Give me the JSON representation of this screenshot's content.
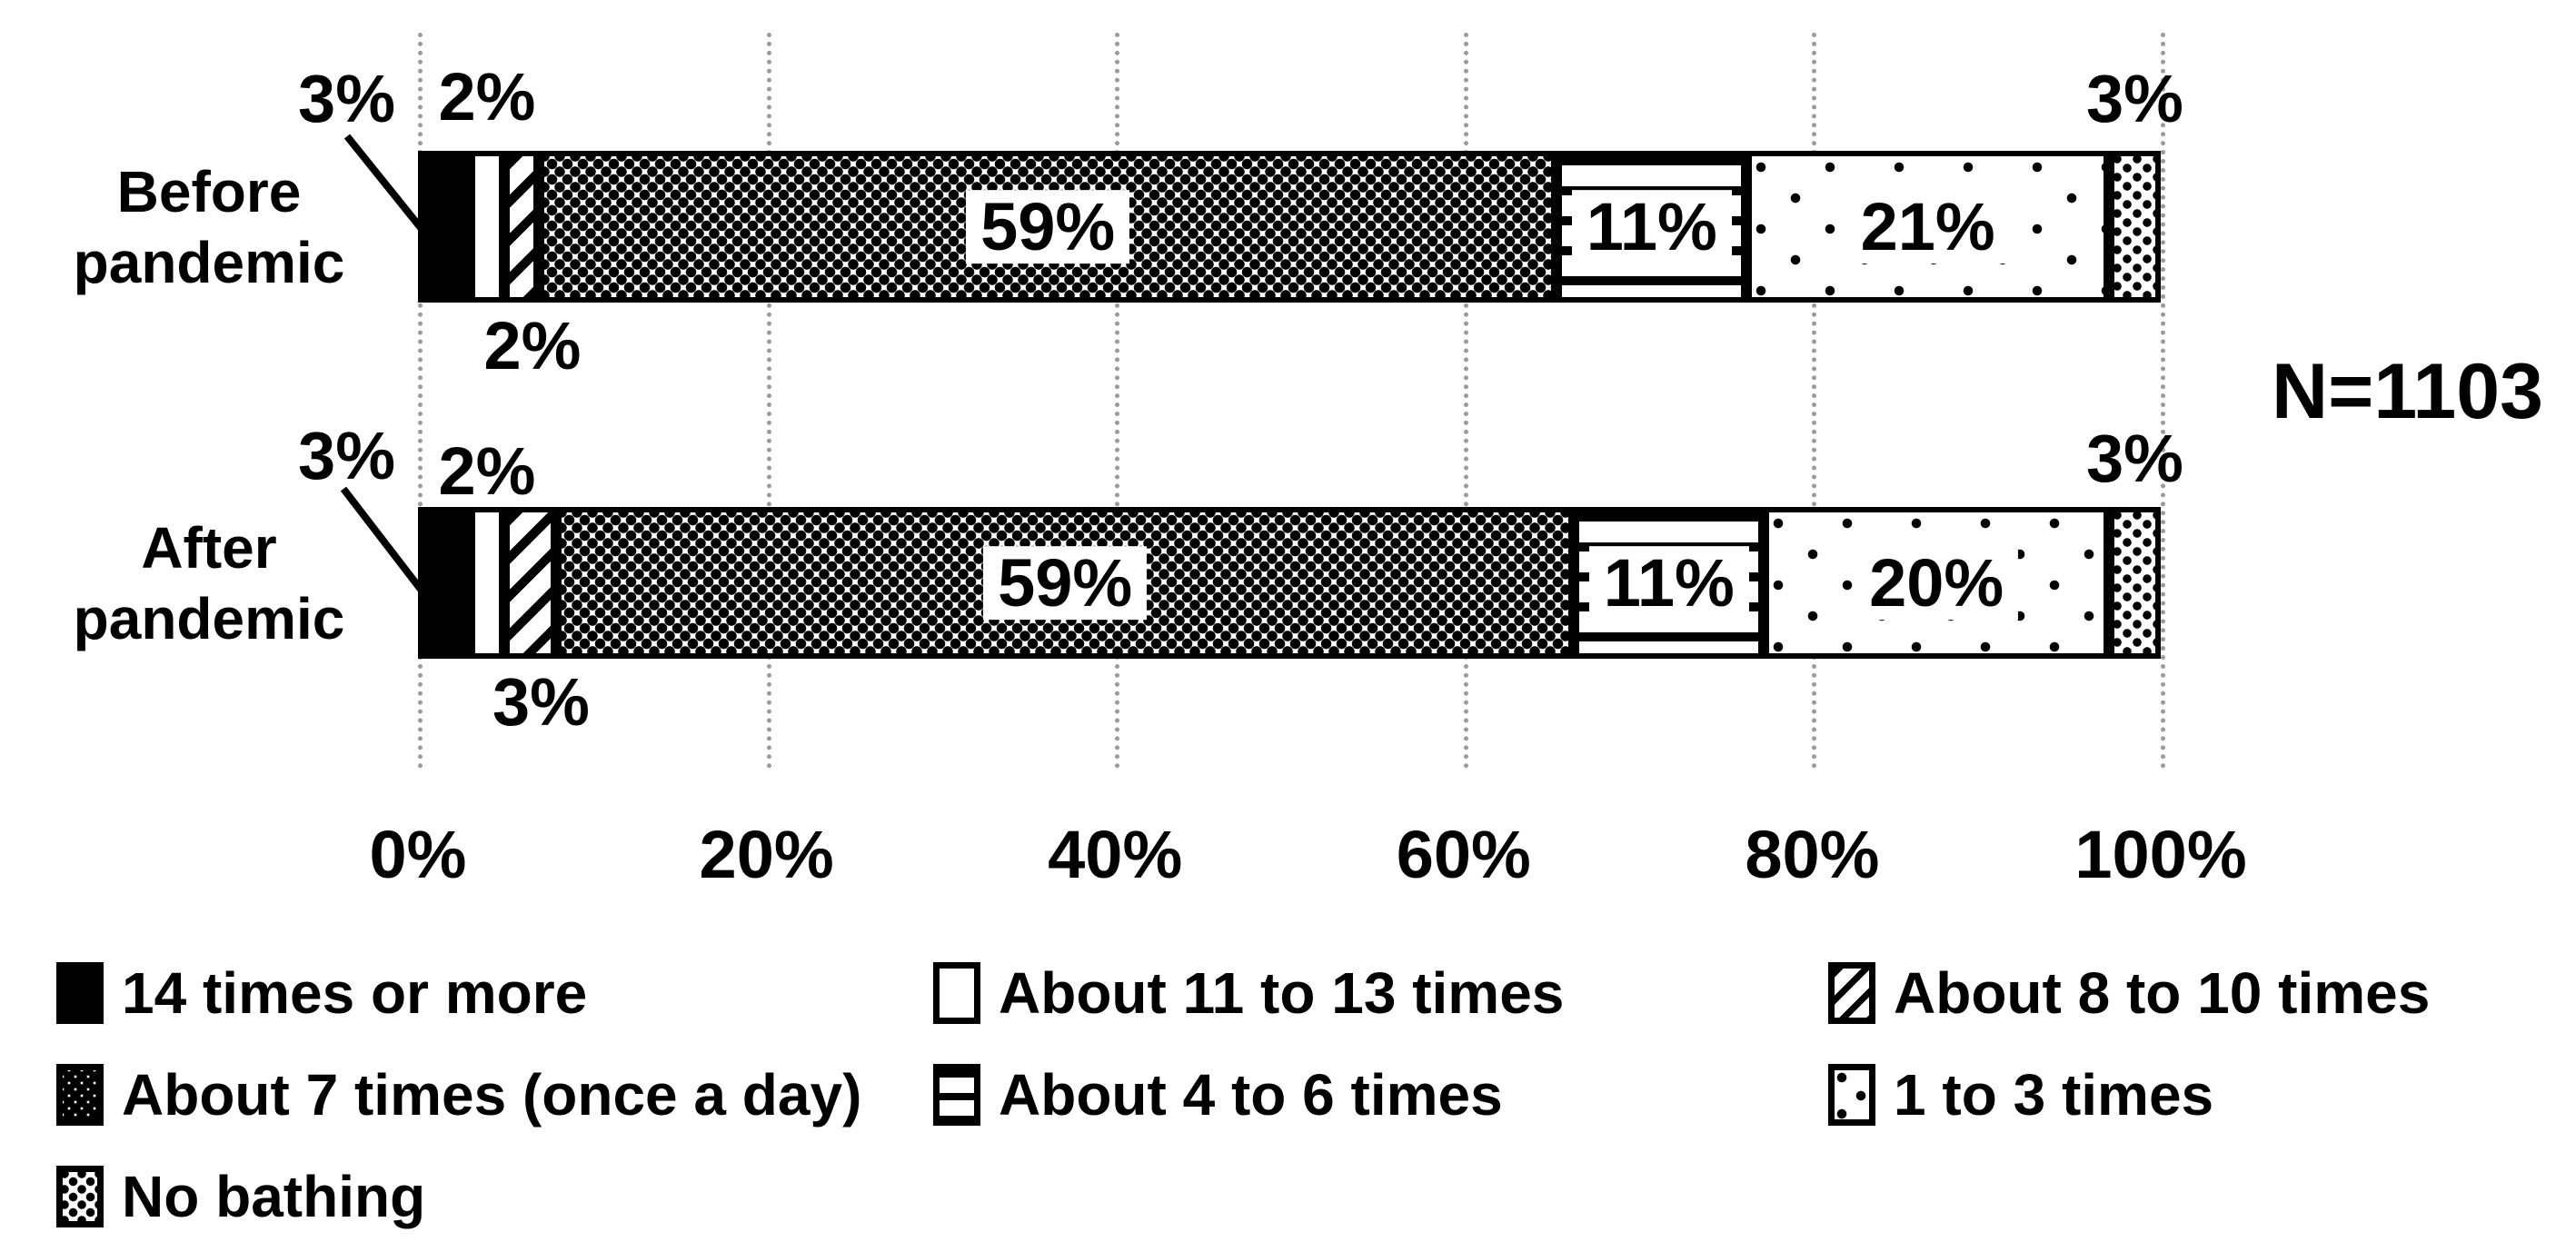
{
  "figure": {
    "background": "#ffffff",
    "ink": "#000000",
    "gridline_color": "#9b9b9b"
  },
  "chart_data": {
    "type": "bar",
    "variant": "horizontal-stacked-percent",
    "title": "",
    "annotation": "N=1103",
    "categories": [
      "Before pandemic",
      "After pandemic"
    ],
    "series": [
      {
        "name": "14 times or more",
        "pattern": "solid-black",
        "values": [
          3,
          3
        ]
      },
      {
        "name": "About 11 to 13 times",
        "pattern": "plain-white",
        "values": [
          2,
          2
        ]
      },
      {
        "name": "About 8 to 10 times",
        "pattern": "diagonal-hatch",
        "values": [
          2,
          3
        ]
      },
      {
        "name": "About 7 times (once a day)",
        "pattern": "dense-dots",
        "values": [
          59,
          59
        ]
      },
      {
        "name": "About 4 to 6 times",
        "pattern": "horizontal-lines",
        "values": [
          11,
          11
        ]
      },
      {
        "name": "1 to 3 times",
        "pattern": "sparse-dots",
        "values": [
          21,
          20
        ]
      },
      {
        "name": "No bathing",
        "pattern": "grid-dots",
        "values": [
          3,
          3
        ]
      }
    ],
    "x_ticks": [
      "0%",
      "20%",
      "40%",
      "60%",
      "80%",
      "100%"
    ],
    "xlim": [
      0,
      100
    ],
    "grid": true,
    "legend_position": "bottom"
  }
}
